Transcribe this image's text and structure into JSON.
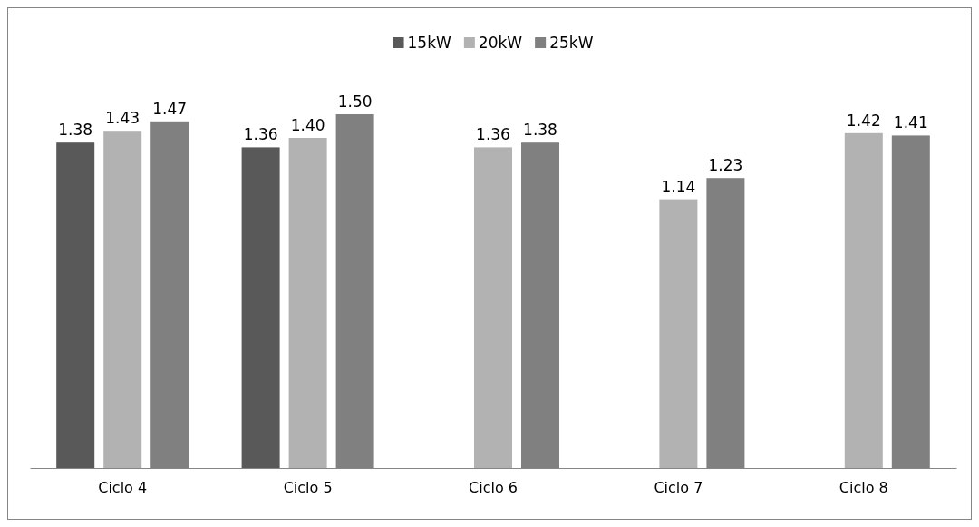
{
  "chart_data": {
    "type": "bar",
    "categories": [
      "Ciclo 4",
      "Ciclo 5",
      "Ciclo 6",
      "Ciclo 7",
      "Ciclo 8"
    ],
    "series": [
      {
        "name": "15kW",
        "color": "#595959",
        "values": [
          1.38,
          1.36,
          null,
          null,
          null
        ],
        "value_labels": [
          "1.38",
          "1.36",
          null,
          null,
          null
        ]
      },
      {
        "name": "20kW",
        "color": "#b2b2b2",
        "values": [
          1.43,
          1.4,
          1.36,
          1.14,
          1.42
        ],
        "value_labels": [
          "1.43",
          "1.40",
          "1.36",
          "1.14",
          "1.42"
        ]
      },
      {
        "name": "25kW",
        "color": "#808080",
        "values": [
          1.47,
          1.5,
          1.38,
          1.23,
          1.41
        ],
        "value_labels": [
          "1.47",
          "1.50",
          "1.38",
          "1.23",
          "1.41"
        ]
      }
    ],
    "tick_labels": "x",
    "legend": "top"
  }
}
